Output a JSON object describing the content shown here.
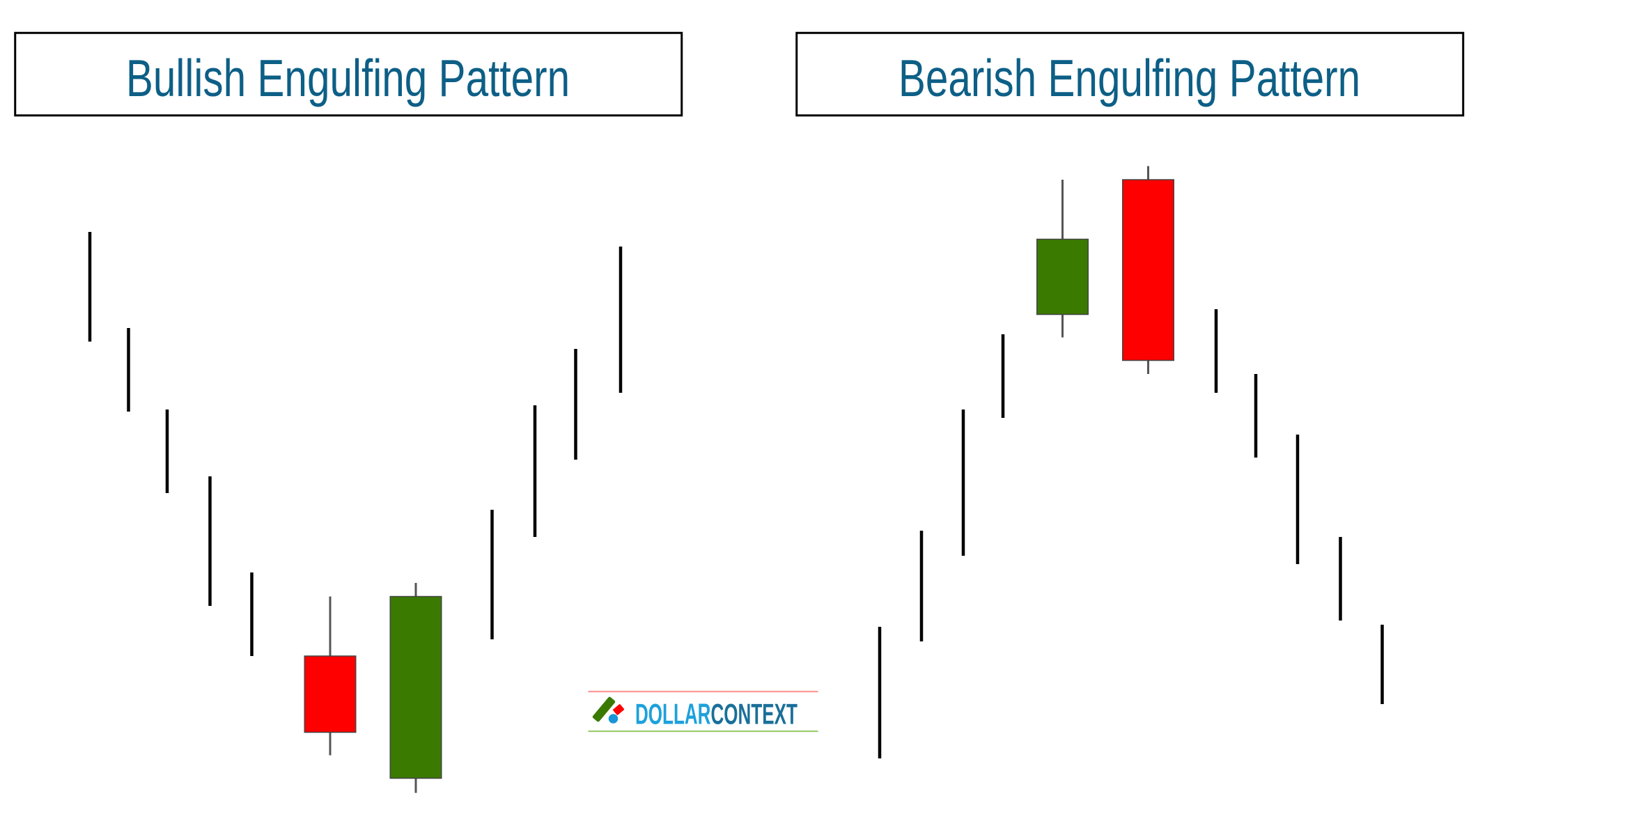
{
  "panels": [
    {
      "title": "Bullish Engulfing Pattern"
    },
    {
      "title": "Bearish Engulfing Pattern"
    }
  ],
  "logo": {
    "part1": "DOLLAR",
    "part2": "CONTEXT"
  },
  "colors": {
    "title_text": "#0d5f86",
    "bullish_candle": "#3a7a00",
    "bearish_candle": "#ff0000",
    "bar": "#000000",
    "logo_dollar": "#1da1db",
    "logo_context": "#1a6f99",
    "logo_top_rule": "#ff9a9a",
    "logo_bottom_rule": "#9ccc70"
  }
}
